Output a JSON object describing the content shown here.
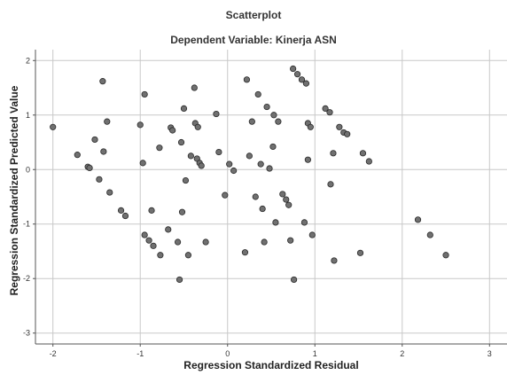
{
  "chart_data": {
    "type": "scatter",
    "title": "Scatterplot",
    "subtitle": "Dependent Variable: Kinerja ASN",
    "xlabel": "Regression Standardized Residual",
    "ylabel": "Regression Standardized Predicted Value",
    "xlim": [
      -2.2,
      3.2
    ],
    "ylim": [
      -3.2,
      2.2
    ],
    "xticks": [
      -2,
      -1,
      0,
      1,
      2,
      3
    ],
    "yticks": [
      -3,
      -2,
      -1,
      0,
      1,
      2
    ],
    "grid": true,
    "points": [
      {
        "x": -2.0,
        "y": 0.78
      },
      {
        "x": -1.72,
        "y": 0.27
      },
      {
        "x": -1.6,
        "y": 0.05
      },
      {
        "x": -1.58,
        "y": 0.03
      },
      {
        "x": -1.52,
        "y": 0.55
      },
      {
        "x": -1.47,
        "y": -0.18
      },
      {
        "x": -1.43,
        "y": 1.62
      },
      {
        "x": -1.42,
        "y": 0.33
      },
      {
        "x": -1.38,
        "y": 0.88
      },
      {
        "x": -1.35,
        "y": -0.42
      },
      {
        "x": -1.22,
        "y": -0.75
      },
      {
        "x": -1.17,
        "y": -0.85
      },
      {
        "x": -1.0,
        "y": 0.82
      },
      {
        "x": -0.97,
        "y": 0.12
      },
      {
        "x": -0.95,
        "y": 1.38
      },
      {
        "x": -0.95,
        "y": -1.2
      },
      {
        "x": -0.9,
        "y": -1.3
      },
      {
        "x": -0.87,
        "y": -0.75
      },
      {
        "x": -0.85,
        "y": -1.4
      },
      {
        "x": -0.78,
        "y": 0.4
      },
      {
        "x": -0.77,
        "y": -1.57
      },
      {
        "x": -0.68,
        "y": -1.1
      },
      {
        "x": -0.65,
        "y": 0.77
      },
      {
        "x": -0.63,
        "y": 0.72
      },
      {
        "x": -0.57,
        "y": -1.33
      },
      {
        "x": -0.55,
        "y": -2.02
      },
      {
        "x": -0.53,
        "y": 0.5
      },
      {
        "x": -0.52,
        "y": -0.78
      },
      {
        "x": -0.5,
        "y": 1.12
      },
      {
        "x": -0.48,
        "y": -0.2
      },
      {
        "x": -0.45,
        "y": -1.57
      },
      {
        "x": -0.42,
        "y": 0.25
      },
      {
        "x": -0.38,
        "y": 1.5
      },
      {
        "x": -0.37,
        "y": 0.85
      },
      {
        "x": -0.35,
        "y": 0.2
      },
      {
        "x": -0.34,
        "y": 0.78
      },
      {
        "x": -0.32,
        "y": 0.12
      },
      {
        "x": -0.3,
        "y": 0.07
      },
      {
        "x": -0.25,
        "y": -1.33
      },
      {
        "x": -0.13,
        "y": 1.02
      },
      {
        "x": -0.1,
        "y": 0.32
      },
      {
        "x": -0.03,
        "y": -0.47
      },
      {
        "x": 0.02,
        "y": 0.1
      },
      {
        "x": 0.07,
        "y": -0.02
      },
      {
        "x": 0.2,
        "y": -1.52
      },
      {
        "x": 0.22,
        "y": 1.65
      },
      {
        "x": 0.25,
        "y": 0.25
      },
      {
        "x": 0.28,
        "y": 0.88
      },
      {
        "x": 0.32,
        "y": -0.5
      },
      {
        "x": 0.35,
        "y": 1.38
      },
      {
        "x": 0.38,
        "y": 0.1
      },
      {
        "x": 0.4,
        "y": -0.72
      },
      {
        "x": 0.42,
        "y": -1.33
      },
      {
        "x": 0.45,
        "y": 1.15
      },
      {
        "x": 0.48,
        "y": 0.02
      },
      {
        "x": 0.52,
        "y": 0.42
      },
      {
        "x": 0.53,
        "y": 1.0
      },
      {
        "x": 0.55,
        "y": -0.97
      },
      {
        "x": 0.58,
        "y": 0.88
      },
      {
        "x": 0.63,
        "y": -0.45
      },
      {
        "x": 0.67,
        "y": -0.55
      },
      {
        "x": 0.7,
        "y": -0.65
      },
      {
        "x": 0.72,
        "y": -1.3
      },
      {
        "x": 0.75,
        "y": 1.85
      },
      {
        "x": 0.76,
        "y": -2.02
      },
      {
        "x": 0.8,
        "y": 1.75
      },
      {
        "x": 0.85,
        "y": 1.65
      },
      {
        "x": 0.88,
        "y": -0.97
      },
      {
        "x": 0.9,
        "y": 1.58
      },
      {
        "x": 0.92,
        "y": 0.85
      },
      {
        "x": 0.92,
        "y": 0.18
      },
      {
        "x": 0.95,
        "y": 0.78
      },
      {
        "x": 0.97,
        "y": -1.2
      },
      {
        "x": 1.12,
        "y": 1.12
      },
      {
        "x": 1.17,
        "y": 1.05
      },
      {
        "x": 1.18,
        "y": -0.27
      },
      {
        "x": 1.21,
        "y": 0.3
      },
      {
        "x": 1.22,
        "y": -1.67
      },
      {
        "x": 1.28,
        "y": 0.78
      },
      {
        "x": 1.33,
        "y": 0.68
      },
      {
        "x": 1.37,
        "y": 0.65
      },
      {
        "x": 1.52,
        "y": -1.53
      },
      {
        "x": 1.55,
        "y": 0.3
      },
      {
        "x": 1.62,
        "y": 0.15
      },
      {
        "x": 2.18,
        "y": -0.92
      },
      {
        "x": 2.32,
        "y": -1.2
      },
      {
        "x": 2.5,
        "y": -1.57
      }
    ]
  },
  "style": {
    "point_fill": "#707070",
    "point_stroke": "#2a2a2a",
    "grid_color": "#c8c8c8",
    "axis_color": "#555555"
  }
}
